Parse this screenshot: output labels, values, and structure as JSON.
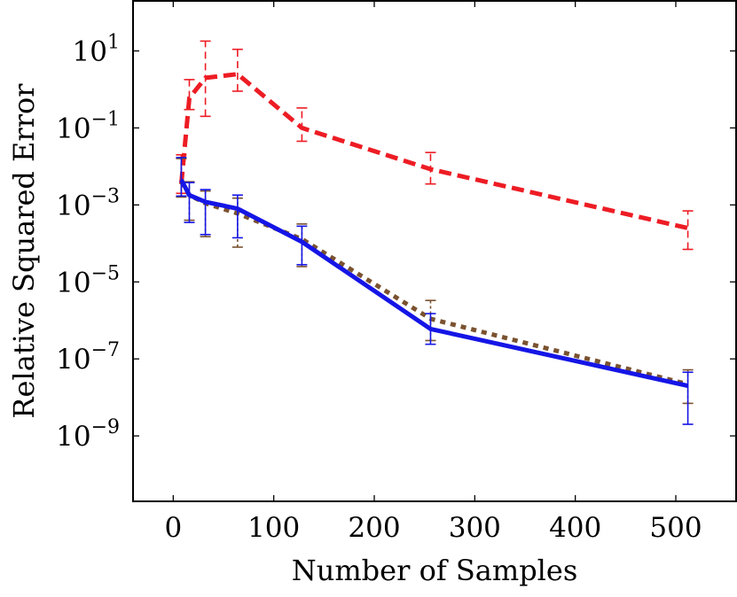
{
  "chart_data": {
    "type": "line",
    "title": "",
    "xlabel": "Number of Samples",
    "ylabel": "Relative Squared Error",
    "xlim": [
      -40,
      560
    ],
    "ylim_exponent": [
      -10.7,
      2.3
    ],
    "y_scale": "log10",
    "grid": false,
    "legend": "none",
    "x_ticks": [
      {
        "value": 0,
        "label": "0"
      },
      {
        "value": 100,
        "label": "100"
      },
      {
        "value": 200,
        "label": "200"
      },
      {
        "value": 300,
        "label": "300"
      },
      {
        "value": 400,
        "label": "400"
      },
      {
        "value": 500,
        "label": "500"
      }
    ],
    "y_ticks": [
      {
        "exponent": 1,
        "base": "10",
        "exp_label": "1"
      },
      {
        "exponent": -1,
        "base": "10",
        "exp_label": "−1"
      },
      {
        "exponent": -3,
        "base": "10",
        "exp_label": "−3"
      },
      {
        "exponent": -5,
        "base": "10",
        "exp_label": "−5"
      },
      {
        "exponent": -7,
        "base": "10",
        "exp_label": "−7"
      },
      {
        "exponent": -9,
        "base": "10",
        "exp_label": "−9"
      }
    ],
    "series": [
      {
        "color": "#ed1c24",
        "style": "dashed",
        "x": [
          8,
          16,
          32,
          64,
          128,
          256,
          512
        ],
        "y": [
          0.0035,
          0.6,
          2.0,
          2.5,
          0.1,
          0.0085,
          0.00025
        ],
        "ylow": [
          0.002,
          0.3,
          0.2,
          0.9,
          0.045,
          0.0035,
          7e-05
        ],
        "yhigh": [
          0.02,
          1.8,
          18.0,
          11.0,
          0.33,
          0.023,
          0.0007
        ]
      },
      {
        "color": "#7a5230",
        "style": "dotted",
        "x": [
          8,
          16,
          32,
          64,
          128,
          256,
          512
        ],
        "y": [
          0.004,
          0.0018,
          0.0011,
          0.0006,
          0.00013,
          1.1e-06,
          2.2e-08
        ],
        "ylow": [
          0.0016,
          0.0004,
          0.00015,
          8e-05,
          2.5e-05,
          3e-07,
          7e-09
        ],
        "yhigh": [
          0.016,
          0.004,
          0.0023,
          0.0015,
          0.00032,
          3.3e-06,
          5.2e-08
        ]
      },
      {
        "color": "#1515e6",
        "style": "solid",
        "x": [
          8,
          16,
          32,
          64,
          128,
          256,
          512
        ],
        "y": [
          0.0045,
          0.0018,
          0.0012,
          0.0008,
          0.00011,
          6e-07,
          2e-08
        ],
        "ylow": [
          0.0017,
          0.00035,
          0.00017,
          0.00014,
          2.8e-05,
          2.4e-07,
          2e-09
        ],
        "yhigh": [
          0.017,
          0.0038,
          0.0025,
          0.0018,
          0.00028,
          1.5e-06,
          4.5e-08
        ]
      }
    ]
  }
}
